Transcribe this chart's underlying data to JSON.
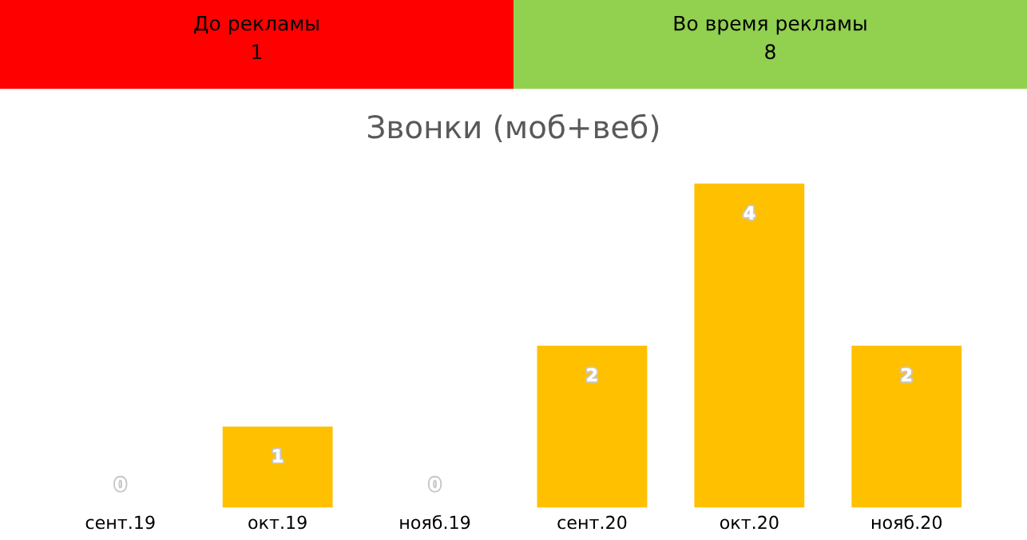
{
  "chart_data": [
    {
      "type": "other",
      "categories": [
        "До рекламы",
        "Во время рекламы"
      ],
      "values": [
        1,
        8
      ],
      "colors": [
        "#ff0000",
        "#92d050"
      ],
      "data_labels": true
    },
    {
      "type": "bar",
      "title": "Звонки (моб+веб)",
      "categories": [
        "сент.19",
        "окт.19",
        "нояб.19",
        "сент.20",
        "окт.20",
        "нояб.20"
      ],
      "values": [
        0,
        1,
        0,
        2,
        4,
        2
      ],
      "color": "#ffc000",
      "data_labels": true,
      "grid": false
    }
  ]
}
